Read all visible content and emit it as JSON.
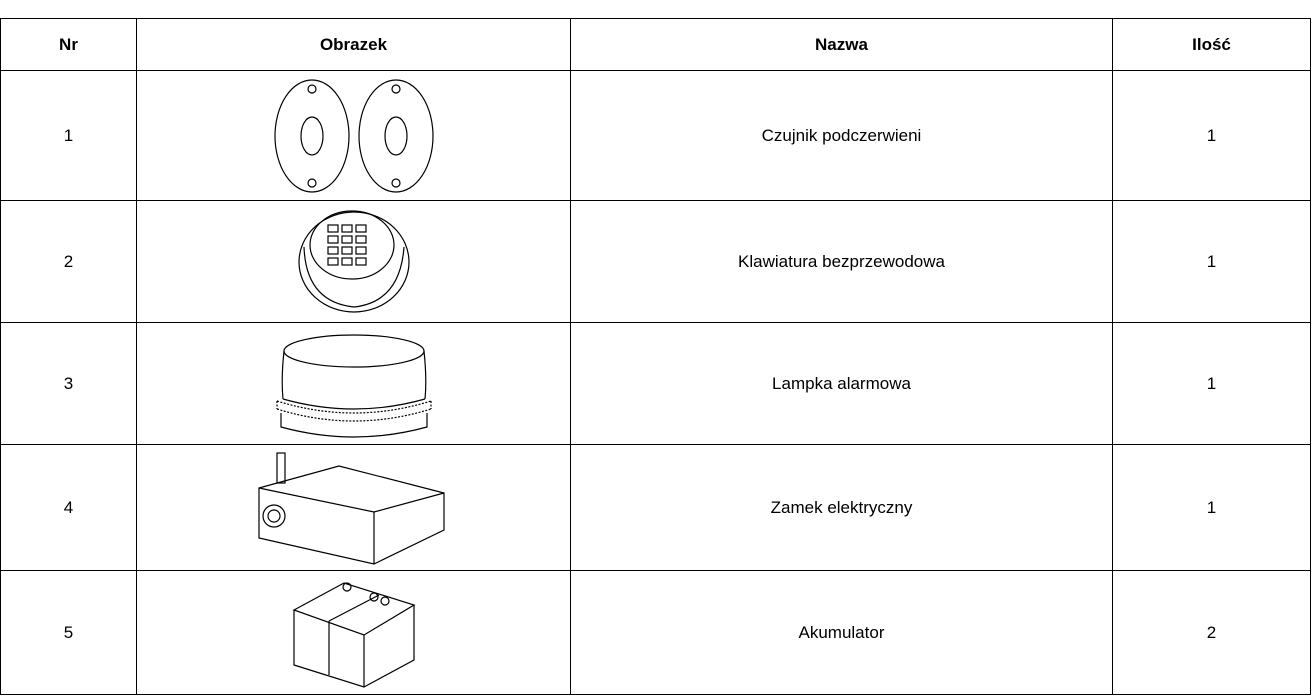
{
  "table": {
    "headers": [
      "Nr",
      "Obrazek",
      "Nazwa",
      "Ilość"
    ],
    "rows": [
      {
        "nr": 1,
        "name": "Czujnik podczerwieni",
        "qty": 1
      },
      {
        "nr": 2,
        "name": "Klawiatura bezprzewodowa",
        "qty": 1
      },
      {
        "nr": 3,
        "name": "Lampka alarmowa",
        "qty": 1
      },
      {
        "nr": 4,
        "name": "Zamek elektryczny",
        "qty": 1
      },
      {
        "nr": 5,
        "name": "Akumulator",
        "qty": 2
      }
    ]
  }
}
